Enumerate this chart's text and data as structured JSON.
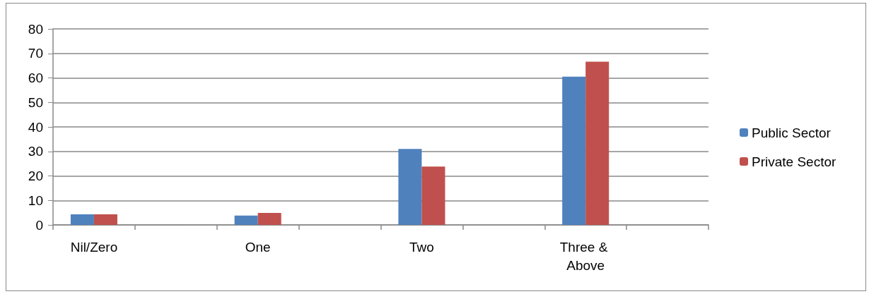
{
  "chart_data": {
    "type": "bar",
    "categories": [
      "Nil/Zero",
      null,
      "One",
      null,
      "Two",
      null,
      "Three & Above",
      null
    ],
    "series": [
      {
        "name": "Public Sector",
        "color": "#4f81bd",
        "values": [
          4.3,
          null,
          3.8,
          null,
          31.0,
          null,
          60.5,
          null
        ]
      },
      {
        "name": "Private Sector",
        "color": "#c0504d",
        "values": [
          4.3,
          null,
          4.9,
          null,
          23.8,
          null,
          66.6,
          null
        ]
      }
    ],
    "ylim": [
      0,
      80
    ],
    "yticks": [
      0,
      10,
      20,
      30,
      40,
      50,
      60,
      70,
      80
    ],
    "grid": "y",
    "legend": "right"
  }
}
